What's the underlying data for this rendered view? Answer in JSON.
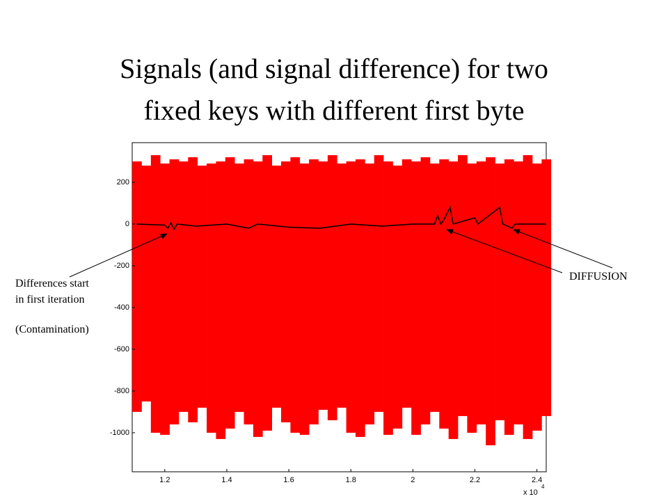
{
  "chart_data": {
    "type": "signal",
    "title_lines": [
      "Signals (and signal difference) for two",
      "fixed keys with different first byte"
    ],
    "annotations": [
      "Differences start",
      "in first iteration",
      "(Contamination)",
      "DIFFUSION"
    ],
    "xscale_base": "x 10",
    "xscale_exponent": "4",
    "xlim": [
      1.095,
      2.43
    ],
    "ylim": [
      -1187,
      390
    ],
    "xticks": [
      1.2,
      1.4,
      1.6,
      1.8,
      2,
      2.2,
      2.4
    ],
    "yticks": [
      200,
      0,
      -200,
      -400,
      -600,
      -800,
      -1000
    ],
    "series": [
      {
        "name": "signals",
        "color": "#ff0000",
        "x": [
          1.11,
          1.14,
          1.17,
          1.2,
          1.23,
          1.26,
          1.29,
          1.32,
          1.35,
          1.38,
          1.41,
          1.44,
          1.47,
          1.5,
          1.53,
          1.56,
          1.59,
          1.62,
          1.65,
          1.68,
          1.71,
          1.74,
          1.77,
          1.8,
          1.83,
          1.86,
          1.89,
          1.92,
          1.95,
          1.98,
          2.01,
          2.04,
          2.07,
          2.1,
          2.13,
          2.16,
          2.19,
          2.22,
          2.25,
          2.28,
          2.31,
          2.34,
          2.37,
          2.4,
          2.43
        ],
        "max": [
          300,
          280,
          330,
          290,
          310,
          300,
          320,
          280,
          290,
          300,
          320,
          290,
          310,
          300,
          330,
          280,
          300,
          320,
          290,
          310,
          300,
          330,
          290,
          300,
          310,
          290,
          330,
          300,
          280,
          310,
          300,
          320,
          290,
          310,
          300,
          330,
          290,
          300,
          320,
          290,
          310,
          300,
          330,
          290,
          310
        ],
        "min": [
          -900,
          -850,
          -1000,
          -1010,
          -960,
          -900,
          -950,
          -880,
          -1000,
          -1030,
          -980,
          -900,
          -960,
          -1020,
          -990,
          -880,
          -950,
          -1000,
          -1010,
          -960,
          -890,
          -940,
          -880,
          -1000,
          -1020,
          -960,
          -900,
          -1010,
          -980,
          -880,
          -1010,
          -960,
          -900,
          -980,
          -1030,
          -920,
          -1000,
          -960,
          -1060,
          -940,
          -1010,
          -960,
          -1030,
          -990,
          -920
        ]
      },
      {
        "name": "difference",
        "color": "#000000",
        "x": [
          1.11,
          1.2,
          1.21,
          1.22,
          1.23,
          1.24,
          1.3,
          1.4,
          1.47,
          1.5,
          1.6,
          1.7,
          1.8,
          1.9,
          2.0,
          2.07,
          2.08,
          2.09,
          2.1,
          2.12,
          2.13,
          2.2,
          2.21,
          2.28,
          2.29,
          2.32,
          2.33,
          2.43
        ],
        "values": [
          0,
          -5,
          -20,
          5,
          -25,
          0,
          -10,
          0,
          -20,
          0,
          -15,
          -20,
          0,
          -10,
          0,
          0,
          40,
          0,
          20,
          80,
          0,
          30,
          0,
          80,
          0,
          -20,
          0,
          0
        ]
      }
    ]
  }
}
